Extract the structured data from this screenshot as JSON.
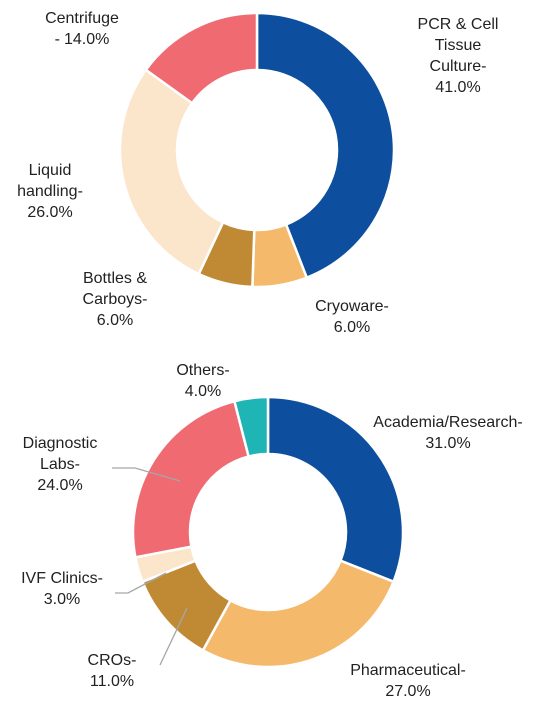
{
  "chart_data": [
    {
      "type": "donut",
      "categories": [
        "PCR & Cell Tissue Culture-",
        "Cryoware-",
        "Bottles & Carboys-",
        "Liquid handling-",
        "Centrifuge -"
      ],
      "values": [
        41,
        6,
        6,
        26,
        14
      ],
      "value_labels": [
        "41.0%",
        "6.0%",
        "6.0%",
        "26.0%",
        "14.0%"
      ],
      "colors": [
        "#0d4f9e",
        "#f5b96b",
        "#c08a35",
        "#fbe5cb",
        "#f06a72"
      ]
    },
    {
      "type": "donut",
      "categories": [
        "Academia/Research-",
        "Pharmaceutical-",
        "CROs-",
        "IVF Clinics-",
        "Diagnostic Labs-",
        "Others-"
      ],
      "values": [
        31,
        27,
        11,
        3,
        24,
        4
      ],
      "value_labels": [
        "31.0%",
        "27.0%",
        "11.0%",
        "3.0%",
        "24.0%",
        "4.0%"
      ],
      "colors": [
        "#0d4f9e",
        "#f5b96b",
        "#c08a35",
        "#fbe5cb",
        "#f06a72",
        "#1fb5b5"
      ]
    }
  ]
}
